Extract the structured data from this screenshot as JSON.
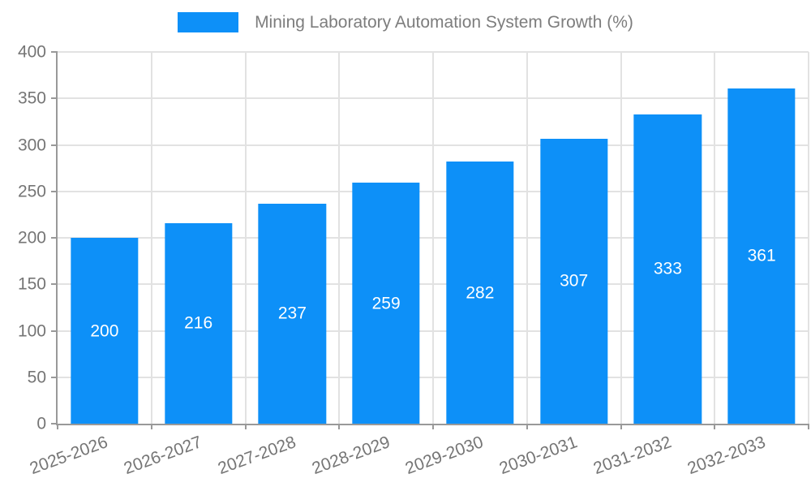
{
  "chart_data": {
    "type": "bar",
    "title": "Mining Laboratory Automation System Growth (%)",
    "legend": {
      "label": "Mining Laboratory Automation System Growth (%)",
      "position": "top-center"
    },
    "categories": [
      "2025-2026",
      "2026-2027",
      "2027-2028",
      "2028-2029",
      "2029-2030",
      "2030-2031",
      "2031-2032",
      "2032-2033"
    ],
    "series": [
      {
        "name": "Mining Laboratory Automation System Growth (%)",
        "values": [
          200,
          216,
          237,
          259,
          282,
          307,
          333,
          361
        ]
      }
    ],
    "bar_value_labels": [
      "200",
      "216",
      "237",
      "259",
      "282",
      "307",
      "333",
      "361"
    ],
    "xlabel": "",
    "ylabel": "",
    "ylim": [
      0,
      400
    ],
    "yticks": [
      0,
      50,
      100,
      150,
      200,
      250,
      300,
      350,
      400
    ],
    "grid": true,
    "x_label_rotation_deg": 20,
    "bar_label_position": "inside-center",
    "colors": {
      "bar": "#0D90F8",
      "bar_label": "#FFFFFF",
      "axis_line": "#999999",
      "grid_line": "#E2E2E2",
      "tick_label": "#757575",
      "legend_text": "#7D7D7D",
      "background": "#FFFFFF"
    }
  }
}
